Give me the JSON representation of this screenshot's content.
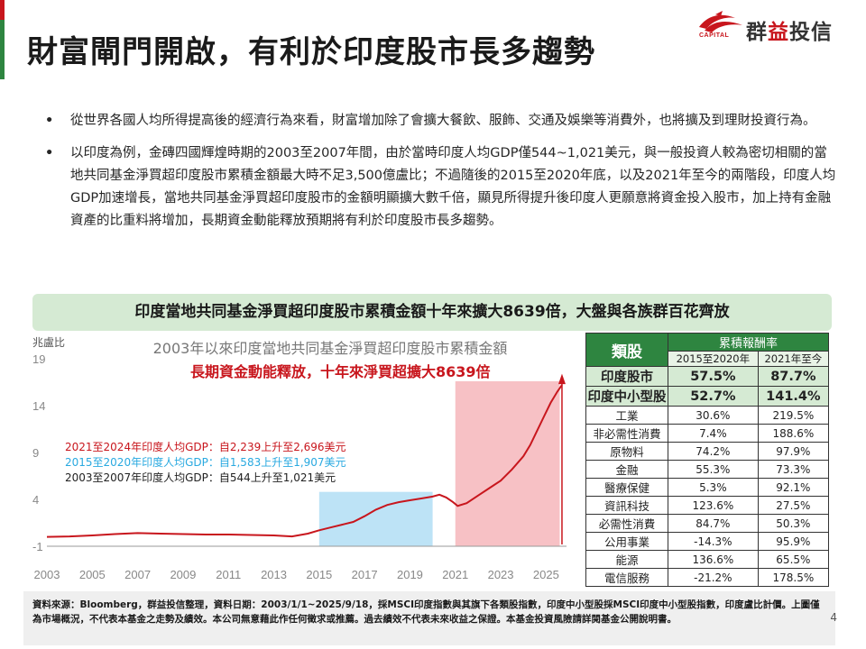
{
  "slide": {
    "title": "財富閘門開啟，有利於印度股市長多趨勢",
    "page_number": "4"
  },
  "logo": {
    "capital": "CAPITAL",
    "name_part1": "群",
    "name_part2": "益",
    "name_part3": "投信"
  },
  "bullets": [
    "從世界各國人均所得提高後的經濟行為來看，財富增加除了會擴大餐飲、服飾、交通及娛樂等消費外，也將擴及到理財投資行為。",
    "以印度為例，金磚四國輝煌時期的2003至2007年間，由於當時印度人均GDP僅544~1,021美元，與一般投資人較為密切相關的當地共同基金淨買超印度股市累積金額最大時不足3,500億盧比；不過隨後的2015至2020年底，以及2021年至今的兩階段，印度人均GDP加速增長，當地共同基金淨買超印度股市的金額明顯擴大數千倍，顯見所得提升後印度人更願意將資金投入股市，加上持有金融資產的比重料將增加，長期資金動能釋放預期將有利於印度股市長多趨勢。"
  ],
  "bullet_marker": "•",
  "banner": "印度當地共同基金淨買超印度股市累積金額十年來擴大8639倍，大盤與各族群百花齊放",
  "chart_data": {
    "type": "line",
    "title": "2003年以來印度當地共同基金淨買超印度股市累積金額",
    "ylabel": "兆盧比",
    "ylim": [
      -1,
      19
    ],
    "y_ticks": [
      "19",
      "14",
      "9",
      "4",
      "-1"
    ],
    "xlim": [
      2003,
      2025.9
    ],
    "x_ticks": [
      "2003",
      "2005",
      "2007",
      "2009",
      "2011",
      "2013",
      "2015",
      "2017",
      "2019",
      "2021",
      "2023",
      "2025"
    ],
    "callout": "長期資金動能釋放，十年來淨買超擴大8639倍",
    "annotations": [
      {
        "text": "2021至2024年印度人均GDP：自2,239上升至2,696美元",
        "color": "#c8161d"
      },
      {
        "text": "2015至2020年印度人均GDP：自1,583上升至1,907美元",
        "color": "#29a9e0"
      },
      {
        "text": "2003至2007年印度人均GDP：自544上升至1,021美元",
        "color": "#222222"
      }
    ],
    "highlight_periods": [
      {
        "from": 2015,
        "to": 2020.0,
        "color": "#bde3f6"
      },
      {
        "from": 2021.0,
        "to": 2025.6,
        "color": "#f7c1c5"
      }
    ],
    "series": [
      {
        "color": "#c8161d",
        "x": [
          2003,
          2004,
          2005,
          2006,
          2007,
          2008,
          2009,
          2010,
          2011,
          2012,
          2013,
          2013.8,
          2014.5,
          2015,
          2015.5,
          2016,
          2016.5,
          2017,
          2017.5,
          2018,
          2018.5,
          2019,
          2019.5,
          2020,
          2020.3,
          2020.6,
          2020.9,
          2021.1,
          2021.5,
          2022,
          2022.5,
          2023,
          2023.5,
          2024,
          2024.3,
          2024.6,
          2024.9,
          2025.2,
          2025.5,
          2025.7
        ],
        "y": [
          0.0,
          0.05,
          0.15,
          0.3,
          0.4,
          0.35,
          0.3,
          0.25,
          0.25,
          0.2,
          0.15,
          0.05,
          0.35,
          0.7,
          1.0,
          1.3,
          1.6,
          2.2,
          2.9,
          3.4,
          3.7,
          3.9,
          4.1,
          4.3,
          4.5,
          4.2,
          3.7,
          3.3,
          3.6,
          4.4,
          5.2,
          6.0,
          7.2,
          8.6,
          9.8,
          11.3,
          12.8,
          14.3,
          15.5,
          16.2
        ]
      }
    ]
  },
  "table": {
    "header": "類股",
    "header_span": "累積報酬率",
    "period1": "2015至2020年",
    "period2": "2021年至今",
    "rows": [
      {
        "name": "印度股市",
        "p1": "57.5%",
        "p2": "87.7%",
        "lead": true
      },
      {
        "name": "印度中小型股",
        "p1": "52.7%",
        "p2": "141.4%",
        "lead": true
      },
      {
        "name": "工業",
        "p1": "30.6%",
        "p2": "219.5%"
      },
      {
        "name": "非必需性消費",
        "p1": "7.4%",
        "p2": "188.6%"
      },
      {
        "name": "原物料",
        "p1": "74.2%",
        "p2": "97.9%"
      },
      {
        "name": "金融",
        "p1": "55.3%",
        "p2": "73.3%"
      },
      {
        "name": "醫療保健",
        "p1": "5.3%",
        "p2": "92.1%"
      },
      {
        "name": "資訊科技",
        "p1": "123.6%",
        "p2": "27.5%"
      },
      {
        "name": "必需性消費",
        "p1": "84.7%",
        "p2": "50.3%"
      },
      {
        "name": "公用事業",
        "p1": "-14.3%",
        "p2": "95.9%"
      },
      {
        "name": "能源",
        "p1": "136.6%",
        "p2": "65.5%"
      },
      {
        "name": "電信服務",
        "p1": "-21.2%",
        "p2": "178.5%"
      }
    ]
  },
  "footer": "資料來源：Bloomberg，群益投信整理，資料日期：2003/1/1~2025/9/18，採MSCI印度指數與其旗下各類股指數，印度中小型股採MSCI印度中小型股指數，印度盧比計價。上圖僅為市場概況，不代表本基金之走勢及績效。本公司無意藉此作任何徵求或推薦。過去績效不代表未來收益之保證。本基金投資風險請詳閱基金公開說明書。",
  "colors": {
    "accent_green": "#2e8540",
    "accent_red": "#c8161d",
    "banner_bg": "#d5ead3"
  }
}
